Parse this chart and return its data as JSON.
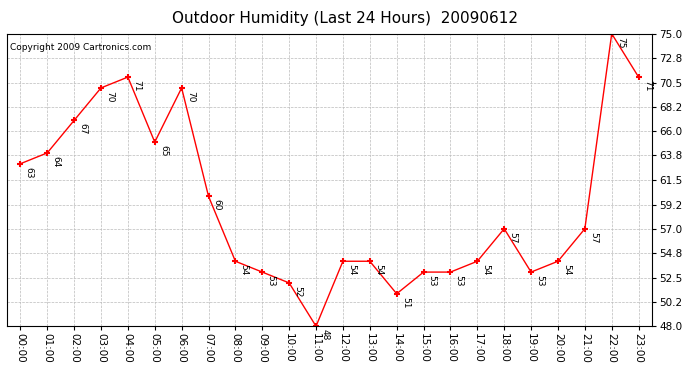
{
  "title": "Outdoor Humidity (Last 24 Hours)  20090612",
  "copyright": "Copyright 2009 Cartronics.com",
  "hours": [
    "00:00",
    "01:00",
    "02:00",
    "03:00",
    "04:00",
    "05:00",
    "06:00",
    "07:00",
    "08:00",
    "09:00",
    "10:00",
    "11:00",
    "12:00",
    "13:00",
    "14:00",
    "15:00",
    "16:00",
    "17:00",
    "18:00",
    "19:00",
    "20:00",
    "21:00",
    "22:00",
    "23:00"
  ],
  "values": [
    63,
    64,
    67,
    70,
    71,
    65,
    70,
    60,
    54,
    53,
    52,
    48,
    54,
    54,
    51,
    53,
    53,
    54,
    57,
    53,
    54,
    57,
    75,
    71
  ],
  "ylim_min": 48.0,
  "ylim_max": 75.0,
  "yticks": [
    48.0,
    50.2,
    52.5,
    54.8,
    57.0,
    59.2,
    61.5,
    63.8,
    66.0,
    68.2,
    70.5,
    72.8,
    75.0
  ],
  "line_color": "red",
  "marker_color": "red",
  "grid_color": "#bbbbbb",
  "bg_color": "white",
  "plot_bg_color": "white",
  "title_fontsize": 11,
  "copyright_fontsize": 6.5,
  "label_fontsize": 6.5,
  "tick_fontsize": 7.5
}
